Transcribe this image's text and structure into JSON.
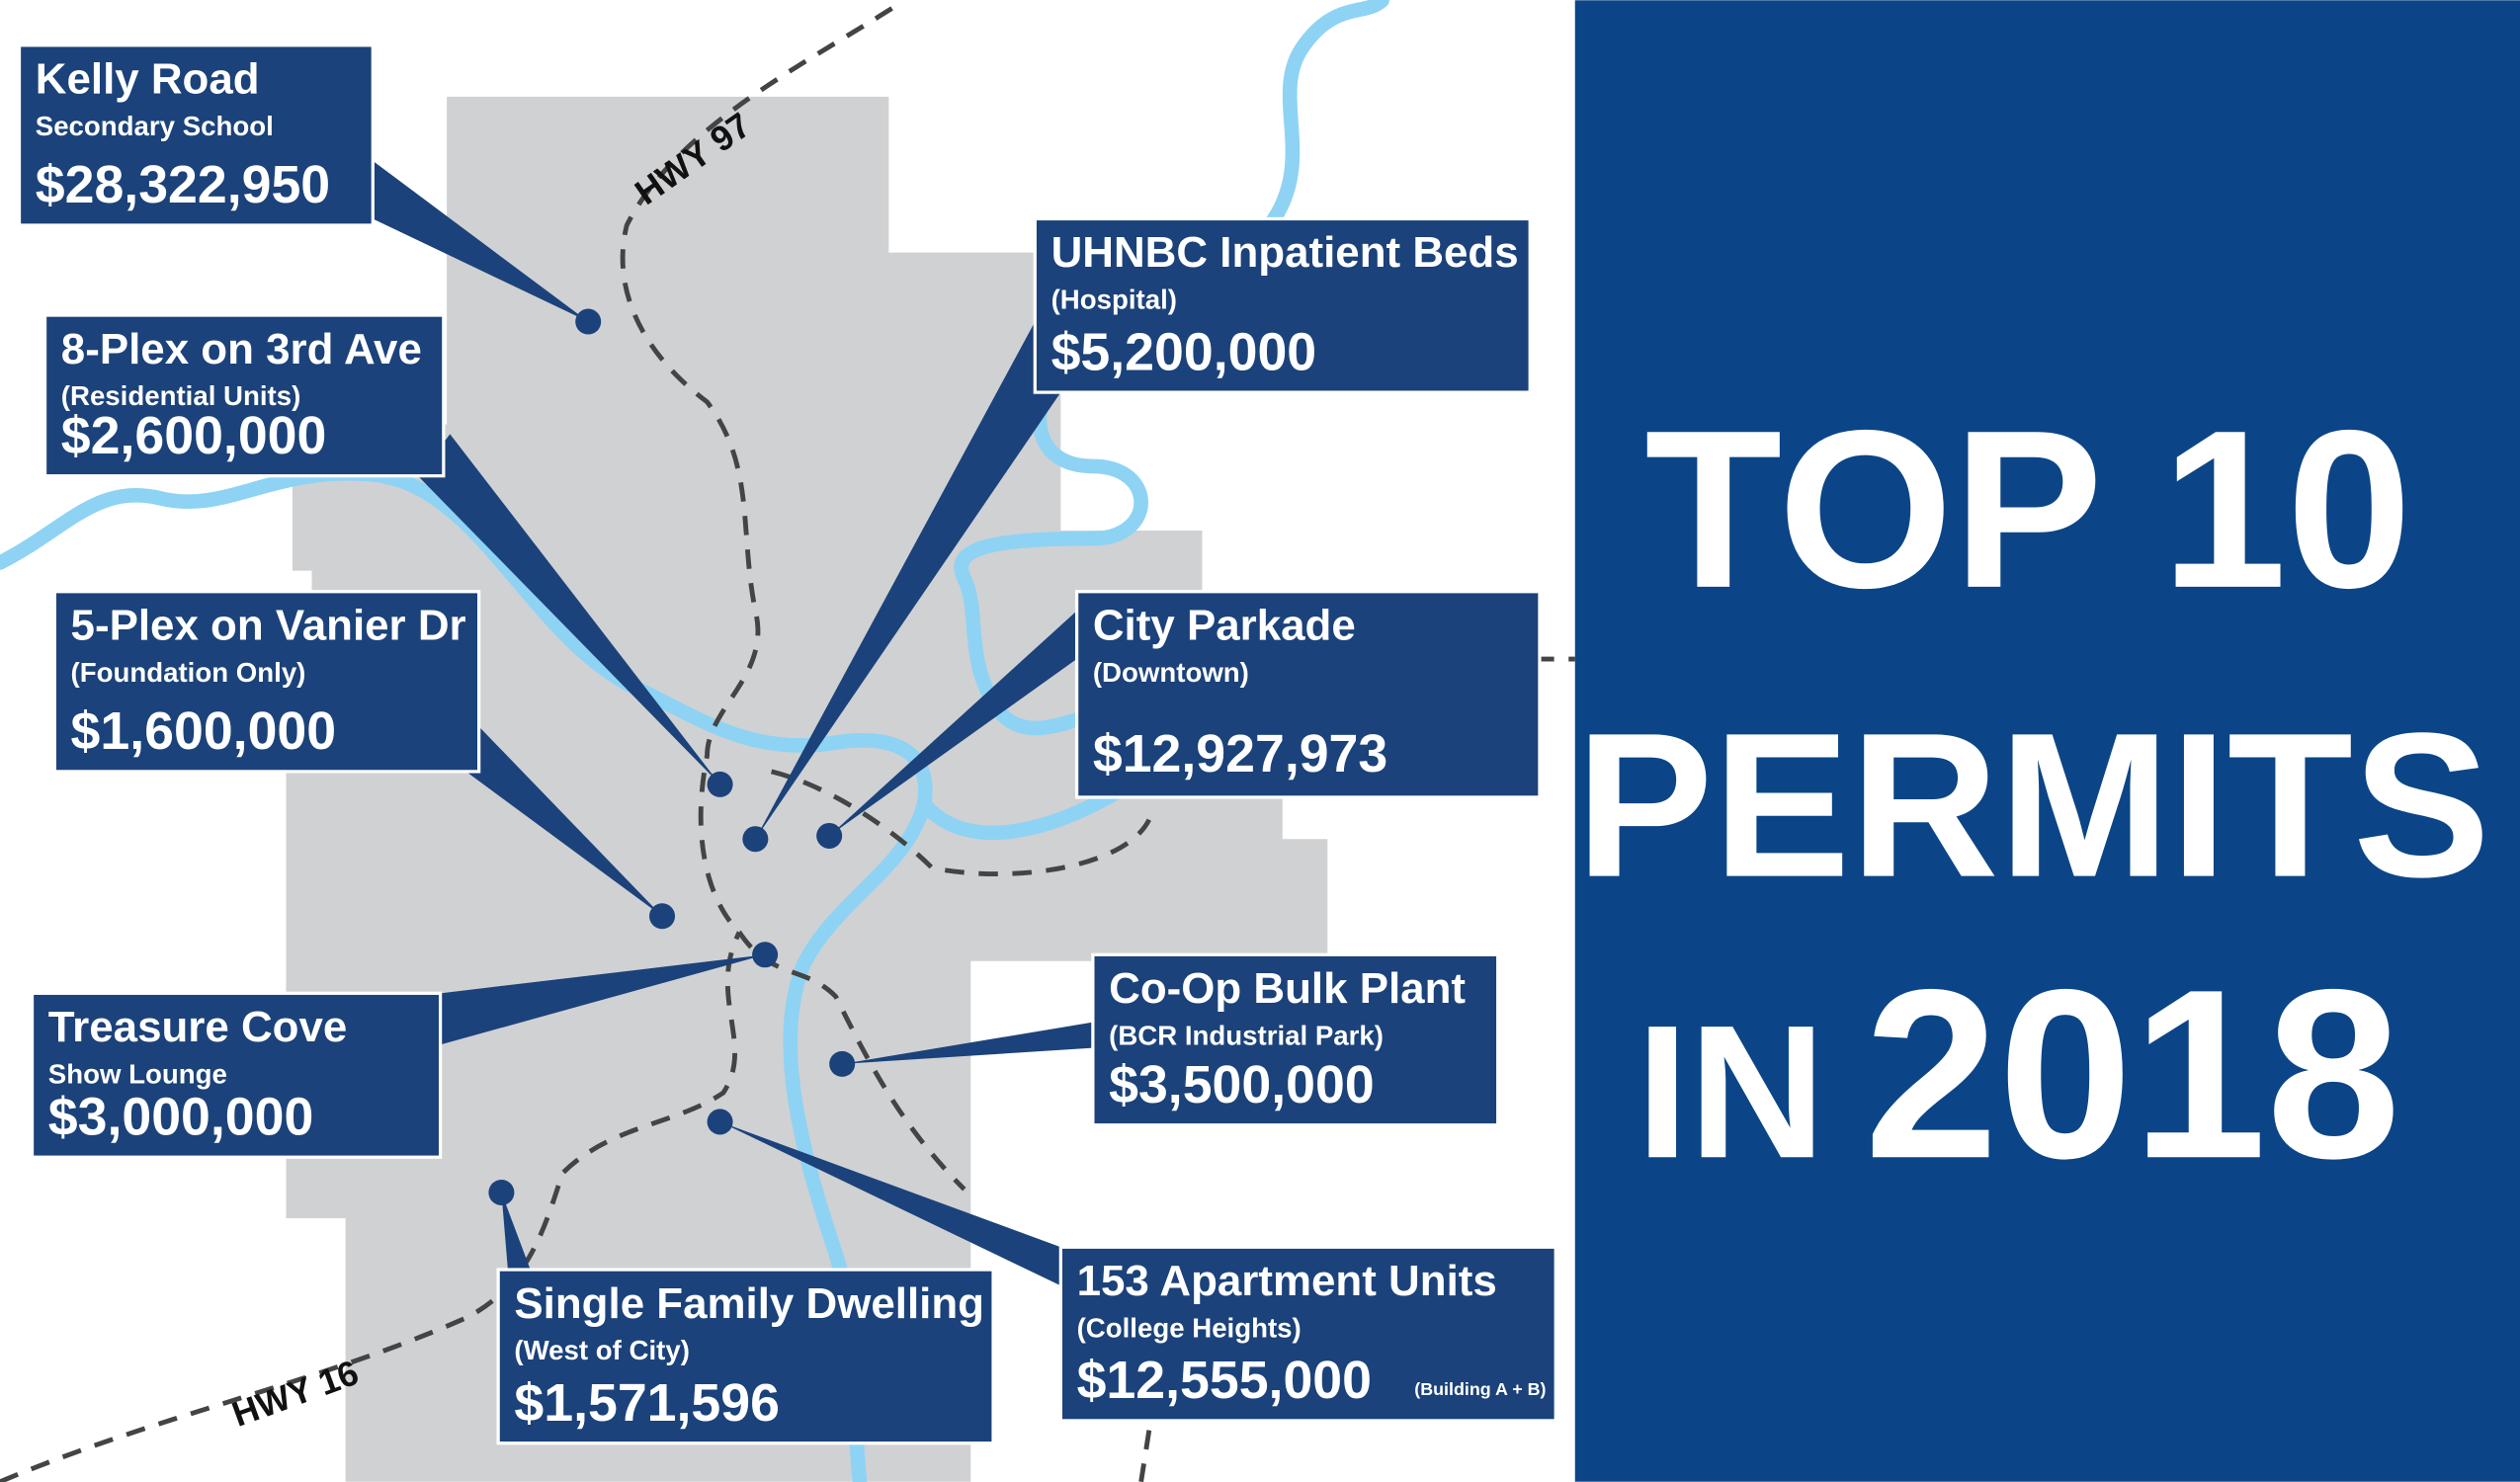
{
  "title": {
    "line1": "TOP 10",
    "line2": "PERMITS",
    "line3_prefix": "IN",
    "line3_year": "2018"
  },
  "highways": [
    "HWY 97",
    "HWY 16"
  ],
  "permits": [
    {
      "name": "Kelly Road",
      "detail": "Secondary School",
      "amount": "$28,322,950"
    },
    {
      "name": "8-Plex on 3rd Ave",
      "detail": "(Residential Units)",
      "amount": "$2,600,000"
    },
    {
      "name": "5-Plex on Vanier Dr",
      "detail": "(Foundation Only)",
      "amount": "$1,600,000"
    },
    {
      "name": "Treasure Cove",
      "detail": "Show Lounge",
      "amount": "$3,000,000"
    },
    {
      "name": "Single Family Dwelling",
      "detail": "(West of City)",
      "amount": "$1,571,596"
    },
    {
      "name": "153 Apartment Units",
      "detail": "(College Heights)",
      "amount": "$12,555,000",
      "note": "(Building A + B)"
    },
    {
      "name": "Co-Op Bulk Plant",
      "detail": "(BCR Industrial Park)",
      "amount": "$3,500,000"
    },
    {
      "name": "City Parkade",
      "detail": "(Downtown)",
      "amount": "$12,927,973"
    },
    {
      "name": "UHNBC Inpatient Beds",
      "detail": "(Hospital)",
      "amount": "$5,200,000"
    }
  ]
}
